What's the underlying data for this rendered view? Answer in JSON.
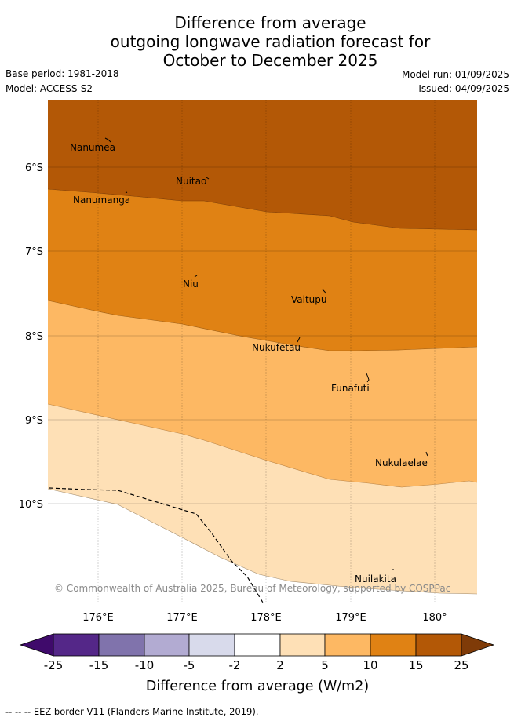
{
  "title": {
    "line1": "Difference from average",
    "line2": "outgoing longwave radiation forecast for",
    "line3": "October to December 2025"
  },
  "meta": {
    "base_period": "Base period: 1981-2018",
    "model": "Model: ACCESS-S2",
    "model_run": "Model run: 01/09/2025",
    "issued": "Issued: 04/09/2025"
  },
  "map": {
    "lon_labels": [
      "176°E",
      "177°E",
      "178°E",
      "179°E",
      "180°"
    ],
    "lat_labels": [
      "6°S",
      "7°S",
      "8°S",
      "9°S",
      "10°S"
    ],
    "places": [
      "Nanumea",
      "Nuitao",
      "Nanumanga",
      "Niu",
      "Vaitupu",
      "Nukufetau",
      "Funafuti",
      "Nukulaelae",
      "Nuilakita"
    ],
    "copyright": "© Commonwealth of Australia 2025, Bureau of Meteorology, supported by COSPPac",
    "band_colors": {
      "15_to_25": "#b35806",
      "10_to_15": "#e08214",
      "5_to_10": "#fdb863",
      "2_to_5": "#fee0b6",
      "border": "#000000"
    }
  },
  "colorbar": {
    "ticks": [
      "-25",
      "-15",
      "-10",
      "-5",
      "-2",
      "2",
      "5",
      "10",
      "15",
      "25"
    ],
    "colors": [
      "#3f0a6b",
      "#542788",
      "#8073ac",
      "#b2abd2",
      "#d8daeb",
      "#ffffff",
      "#fee0b6",
      "#fdb863",
      "#e08214",
      "#b35806",
      "#7f3b08"
    ],
    "label": "Difference from average (W/m2)"
  },
  "footer": "-- -- -- EEZ border V11 (Flanders Marine Institute, 2019)."
}
